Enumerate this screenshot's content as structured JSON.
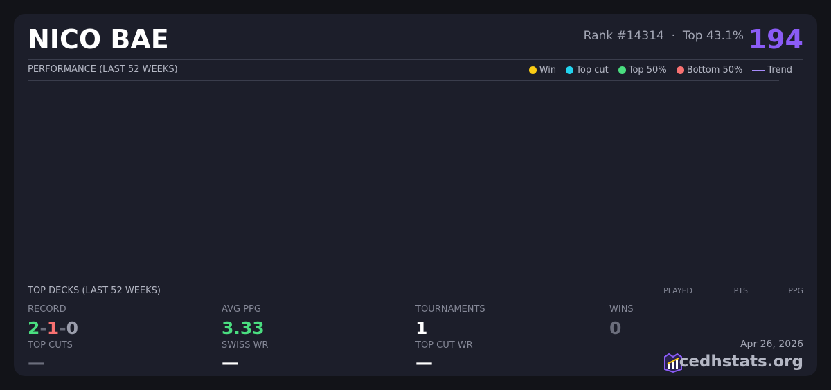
{
  "header": {
    "name": "NICO BAE",
    "rank": "Rank #14314",
    "separator": "·",
    "top_percent": "Top 43.1%",
    "score": 194
  },
  "performance": {
    "title": "PERFORMANCE (LAST 52 WEEKS)",
    "legend": [
      {
        "label": "Win",
        "color": "#facc15"
      },
      {
        "label": "Top cut",
        "color": "#22d3ee"
      },
      {
        "label": "Top 50%",
        "color": "#4ade80"
      },
      {
        "label": "Bottom 50%",
        "color": "#f87171"
      },
      {
        "label": "Trend",
        "color": "#a78bfa",
        "line": true
      }
    ]
  },
  "top_decks": {
    "title": "TOP DECKS (LAST 52 WEEKS)",
    "columns": [
      "PLAYED",
      "PTS",
      "PPG"
    ]
  },
  "stats": {
    "record": {
      "label": "RECORD",
      "wins": 2,
      "losses": 1,
      "draws": 0,
      "separator": "-"
    },
    "avg_ppg": {
      "label": "AVG PPG",
      "value": 3.33
    },
    "tournaments": {
      "label": "TOURNAMENTS",
      "value": 1
    },
    "wins": {
      "label": "WINS",
      "value": 0
    },
    "top_cuts": {
      "label": "TOP CUTS",
      "value": "—"
    },
    "swiss_wr": {
      "label": "SWISS WR",
      "value": "—"
    },
    "top_cut_wr": {
      "label": "TOP CUT WR",
      "value": "—"
    }
  },
  "footer": {
    "date": "Apr 26, 2026",
    "brand": "cedhstats.org"
  }
}
